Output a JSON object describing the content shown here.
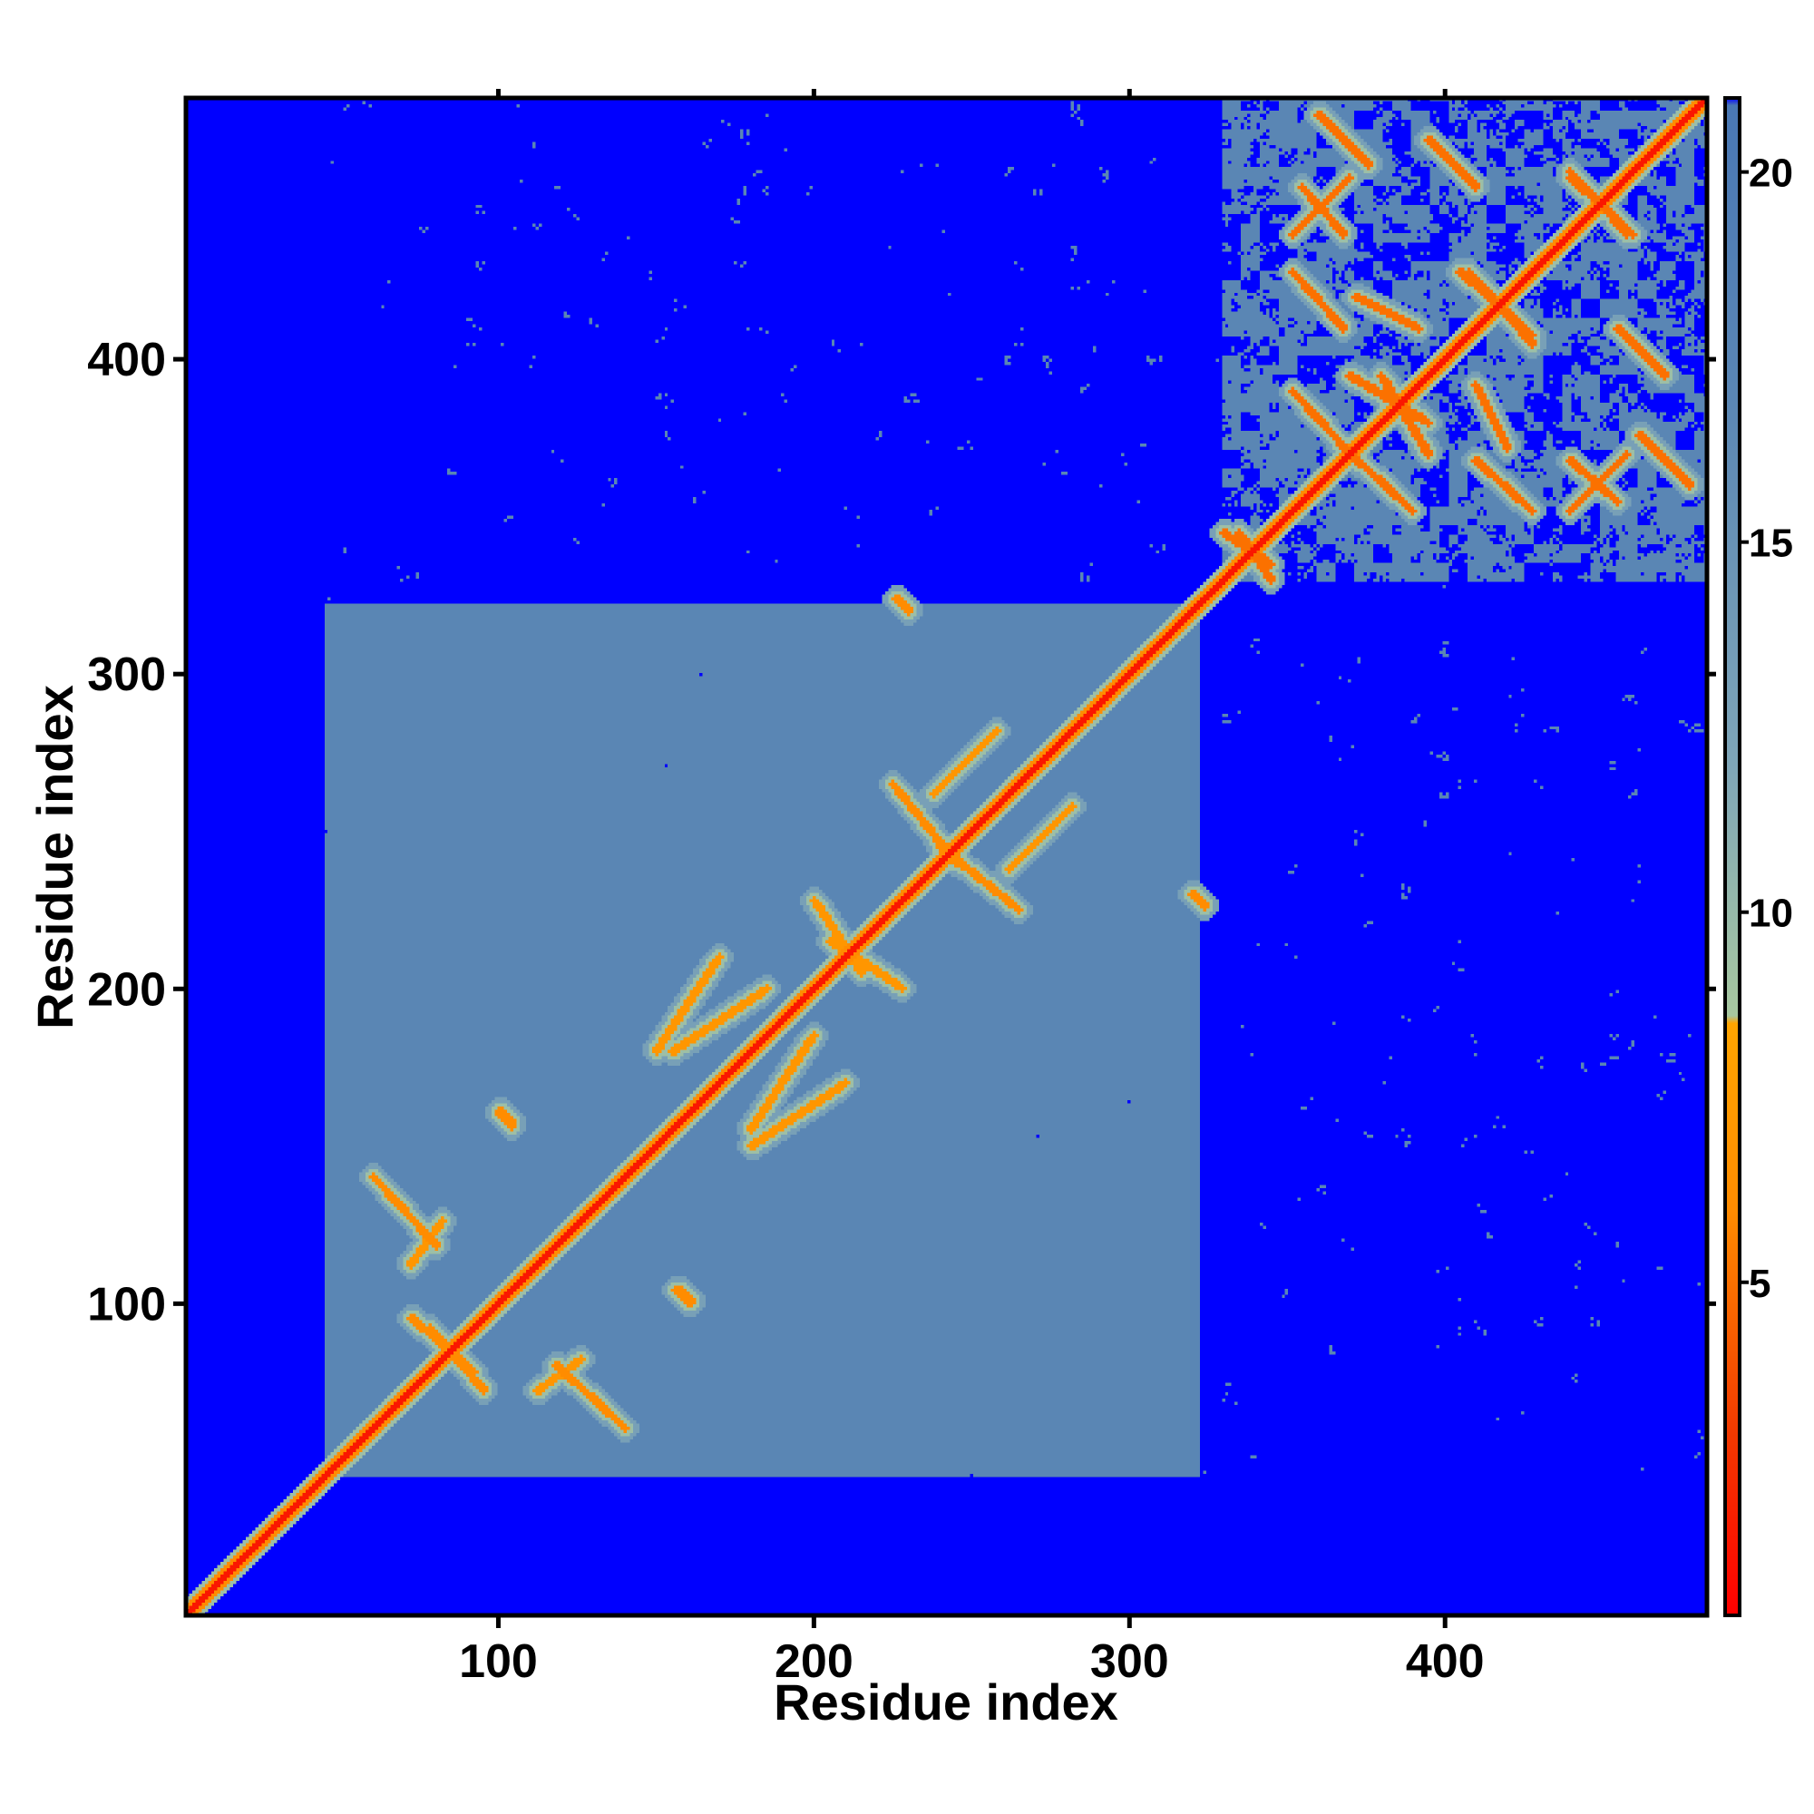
{
  "chart_data": {
    "type": "heatmap",
    "title": "",
    "xlabel": "Residue index",
    "ylabel": "Residue index",
    "xlim": [
      1,
      483
    ],
    "ylim": [
      1,
      483
    ],
    "x_ticks": [
      100,
      200,
      300,
      400
    ],
    "y_ticks": [
      100,
      200,
      300,
      400
    ],
    "colorbar": {
      "min": 0.5,
      "max": 21.0,
      "ticks": [
        5,
        10,
        15,
        20
      ],
      "stops": [
        {
          "value": 0.5,
          "color": "#ff0000"
        },
        {
          "value": 3.0,
          "color": "#f23a00"
        },
        {
          "value": 6.0,
          "color": "#ff8c00"
        },
        {
          "value": 8.5,
          "color": "#ffa500"
        },
        {
          "value": 8.6,
          "color": "#a8c8a0"
        },
        {
          "value": 12.0,
          "color": "#7fa6b8"
        },
        {
          "value": 17.0,
          "color": "#5a86b4"
        },
        {
          "value": 20.9,
          "color": "#4a78b4"
        },
        {
          "value": 21.0,
          "color": "#0000ff"
        }
      ]
    },
    "background_value": 21,
    "diagonal": {
      "core_value": 1.5,
      "halo_value": 9.5
    },
    "regions": [
      {
        "x": [
          45,
          322
        ],
        "y": [
          45,
          322
        ],
        "value": 17,
        "density": 0.87
      },
      {
        "x": [
          330,
          483
        ],
        "y": [
          330,
          483
        ],
        "value": 17,
        "density": 0.45
      },
      {
        "x": [
          320,
          483
        ],
        "y": [
          45,
          320
        ],
        "value": 17,
        "density": 0.08
      },
      {
        "x": [
          45,
          330
        ],
        "y": [
          330,
          483
        ],
        "value": 17,
        "density": 0.08
      }
    ],
    "contact_lines": [
      {
        "from": [
          60,
          140
        ],
        "to": [
          80,
          118
        ],
        "value": 6
      },
      {
        "from": [
          78,
          92
        ],
        "to": [
          95,
          72
        ],
        "value": 6
      },
      {
        "from": [
          112,
          72
        ],
        "to": [
          126,
          82
        ],
        "value": 7
      },
      {
        "from": [
          150,
          180
        ],
        "to": [
          170,
          210
        ],
        "value": 7
      },
      {
        "from": [
          180,
          155
        ],
        "to": [
          200,
          185
        ],
        "value": 7
      },
      {
        "from": [
          225,
          265
        ],
        "to": [
          245,
          240
        ],
        "value": 6
      },
      {
        "from": [
          262,
          238
        ],
        "to": [
          282,
          258
        ],
        "value": 7
      },
      {
        "from": [
          205,
          215
        ],
        "to": [
          228,
          200
        ],
        "value": 7
      },
      {
        "from": [
          355,
          455
        ],
        "to": [
          368,
          440
        ],
        "value": 5
      },
      {
        "from": [
          360,
          478
        ],
        "to": [
          376,
          462
        ],
        "value": 5
      },
      {
        "from": [
          372,
          420
        ],
        "to": [
          392,
          410
        ],
        "value": 5
      },
      {
        "from": [
          380,
          395
        ],
        "to": [
          395,
          370
        ],
        "value": 5
      },
      {
        "from": [
          352,
          390
        ],
        "to": [
          372,
          368
        ],
        "value": 5
      },
      {
        "from": [
          408,
          428
        ],
        "to": [
          428,
          405
        ],
        "value": 5
      },
      {
        "from": [
          440,
          460
        ],
        "to": [
          458,
          440
        ],
        "value": 5
      },
      {
        "from": [
          410,
          368
        ],
        "to": [
          428,
          352
        ],
        "value": 5
      },
      {
        "from": [
          440,
          352
        ],
        "to": [
          458,
          370
        ],
        "value": 5
      },
      {
        "from": [
          455,
          410
        ],
        "to": [
          470,
          395
        ],
        "value": 5
      },
      {
        "from": [
          335,
          345
        ],
        "to": [
          345,
          330
        ],
        "value": 5
      }
    ],
    "spots": [
      {
        "x": 102,
        "y": 159,
        "value": 6
      },
      {
        "x": 158,
        "y": 102,
        "value": 6
      },
      {
        "x": 322,
        "y": 228,
        "value": 6
      },
      {
        "x": 228,
        "y": 322,
        "value": 6
      }
    ],
    "grid": false,
    "legend": "none"
  }
}
